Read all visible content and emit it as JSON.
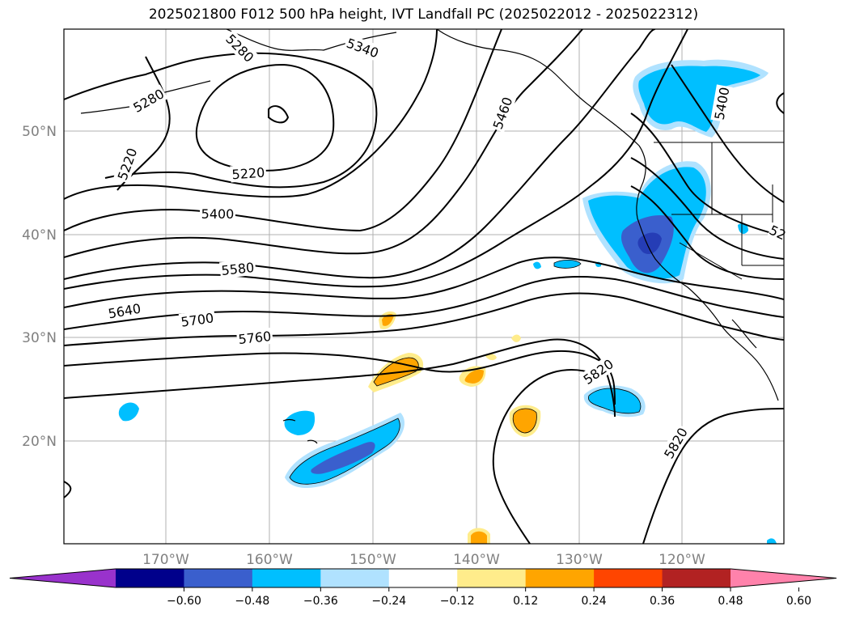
{
  "title": "2025021800 F012 500 hPa height, IVT Landfall PC (2025022012 - 2025022312)",
  "map": {
    "lat_labels": [
      "50°N",
      "40°N",
      "30°N",
      "20°N"
    ],
    "lon_labels": [
      "170°W",
      "160°W",
      "150°W",
      "140°W",
      "130°W",
      "120°W"
    ],
    "contour_labels": [
      "5280",
      "5340",
      "5280",
      "5220",
      "5220",
      "5460",
      "5400",
      "5400",
      "5580",
      "5640",
      "5700",
      "5760",
      "5820",
      "5820",
      "52"
    ],
    "grid": true
  },
  "colorbar": {
    "ticks": [
      "−0.60",
      "−0.48",
      "−0.36",
      "−0.24",
      "−0.12",
      "0.12",
      "0.24",
      "0.36",
      "0.48",
      "0.60"
    ],
    "colors": [
      "#9932CC",
      "#00008B",
      "#3A5FCD",
      "#00BFFF",
      "#B0E2FF",
      "#FFFFFF",
      "#FFEC8B",
      "#FFA500",
      "#FF4500",
      "#B22222",
      "#FF82AB"
    ],
    "extend": "both"
  }
}
